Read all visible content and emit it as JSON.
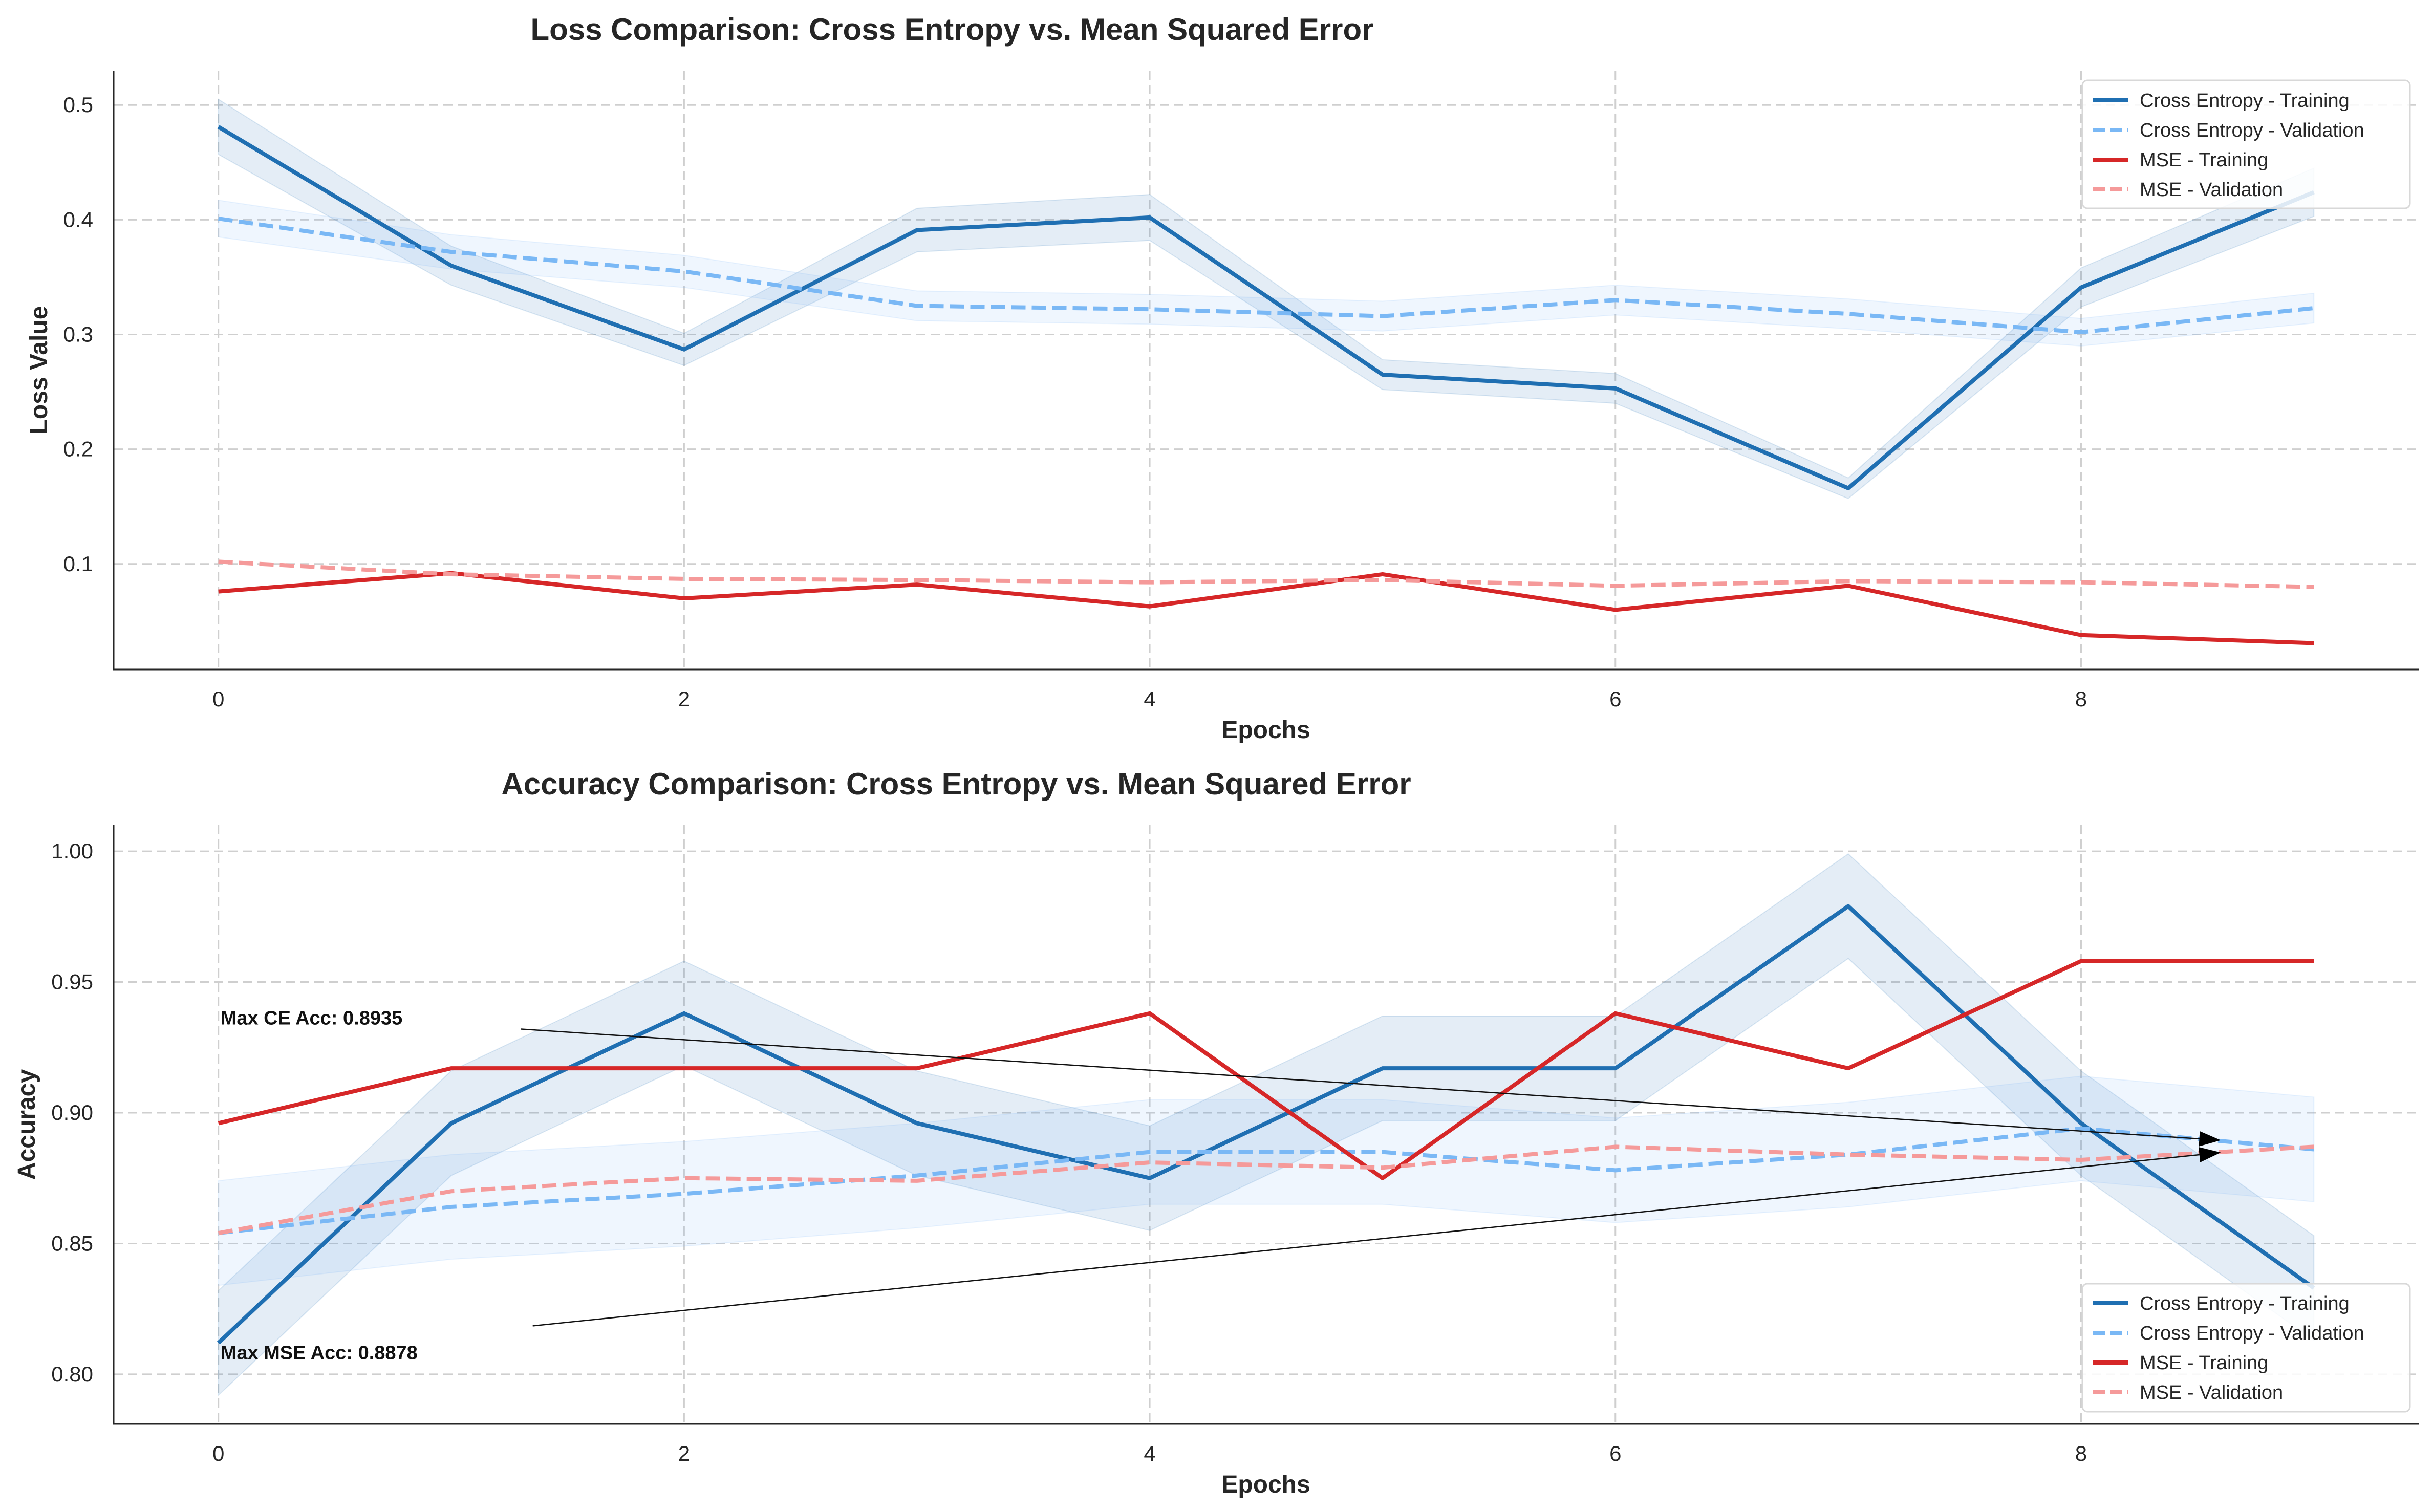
{
  "chart_data": [
    {
      "type": "line",
      "title": "Loss Comparison: Cross Entropy vs. Mean Squared Error",
      "xlabel": "Epochs",
      "ylabel": "Loss Value",
      "x": [
        0,
        1,
        2,
        3,
        4,
        5,
        6,
        7,
        8,
        9
      ],
      "xticks": [
        "0",
        "2",
        "4",
        "6",
        "8"
      ],
      "yticks": [
        "0.1",
        "0.2",
        "0.3",
        "0.4",
        "0.5"
      ],
      "xlim": [
        -0.45,
        9.45
      ],
      "ylim": [
        0.008,
        0.53
      ],
      "grid": true,
      "legend_position": "top-right",
      "series": [
        {
          "name": "Cross Entropy - Training",
          "color": "#1f6fb2",
          "style": "solid",
          "values": [
            0.481,
            0.36,
            0.287,
            0.391,
            0.402,
            0.265,
            0.253,
            0.166,
            0.341,
            0.424
          ],
          "band": [
            0.024,
            0.017,
            0.014,
            0.019,
            0.02,
            0.013,
            0.013,
            0.009,
            0.017,
            0.021
          ]
        },
        {
          "name": "Cross Entropy - Validation",
          "color": "#7ab8f5",
          "style": "dashed",
          "values": [
            0.401,
            0.372,
            0.355,
            0.325,
            0.322,
            0.316,
            0.33,
            0.318,
            0.302,
            0.323
          ],
          "band": [
            0.016,
            0.015,
            0.014,
            0.013,
            0.013,
            0.013,
            0.013,
            0.013,
            0.012,
            0.013
          ]
        },
        {
          "name": "MSE - Training",
          "color": "#d62728",
          "style": "solid",
          "values": [
            0.076,
            0.092,
            0.07,
            0.082,
            0.063,
            0.091,
            0.06,
            0.081,
            0.038,
            0.031
          ]
        },
        {
          "name": "MSE - Validation",
          "color": "#f59a9a",
          "style": "dashed",
          "values": [
            0.102,
            0.091,
            0.087,
            0.086,
            0.084,
            0.086,
            0.081,
            0.085,
            0.084,
            0.08
          ]
        }
      ]
    },
    {
      "type": "line",
      "title": "Accuracy Comparison: Cross Entropy vs. Mean Squared Error",
      "xlabel": "Epochs",
      "ylabel": "Accuracy",
      "x": [
        0,
        1,
        2,
        3,
        4,
        5,
        6,
        7,
        8,
        9
      ],
      "xticks": [
        "0",
        "2",
        "4",
        "6",
        "8"
      ],
      "yticks": [
        "0.80",
        "0.85",
        "0.90",
        "0.95",
        "1.00"
      ],
      "xlim": [
        -0.45,
        9.45
      ],
      "ylim": [
        0.781,
        1.01
      ],
      "grid": true,
      "legend_position": "bottom-right",
      "series": [
        {
          "name": "Cross Entropy - Training",
          "color": "#1f6fb2",
          "style": "solid",
          "values": [
            0.812,
            0.896,
            0.938,
            0.896,
            0.875,
            0.917,
            0.917,
            0.979,
            0.896,
            0.833
          ],
          "band": [
            0.02,
            0.02,
            0.02,
            0.02,
            0.02,
            0.02,
            0.02,
            0.02,
            0.02,
            0.02
          ]
        },
        {
          "name": "Cross Entropy - Validation",
          "color": "#7ab8f5",
          "style": "dashed",
          "values": [
            0.854,
            0.864,
            0.869,
            0.876,
            0.885,
            0.885,
            0.878,
            0.884,
            0.894,
            0.886
          ],
          "band": [
            0.02,
            0.02,
            0.02,
            0.02,
            0.02,
            0.02,
            0.02,
            0.02,
            0.02,
            0.02
          ]
        },
        {
          "name": "MSE - Training",
          "color": "#d62728",
          "style": "solid",
          "values": [
            0.896,
            0.917,
            0.917,
            0.917,
            0.938,
            0.875,
            0.938,
            0.917,
            0.958,
            0.958
          ]
        },
        {
          "name": "MSE - Validation",
          "color": "#f59a9a",
          "style": "dashed",
          "values": [
            0.854,
            0.87,
            0.875,
            0.874,
            0.881,
            0.879,
            0.887,
            0.884,
            0.882,
            0.887
          ]
        }
      ],
      "annotations": [
        {
          "text": "Max CE Acc: 0.8935",
          "text_x": 0,
          "text_y": 0.9365,
          "tail_x": 1.3,
          "tail_y": 0.932,
          "arrow_x": 8.6,
          "arrow_y": 0.8895
        },
        {
          "text": "Max MSE Acc: 0.8878",
          "text_x": 0,
          "text_y": 0.8085,
          "tail_x": 1.35,
          "tail_y": 0.8185,
          "arrow_x": 8.6,
          "arrow_y": 0.8848
        }
      ]
    }
  ]
}
